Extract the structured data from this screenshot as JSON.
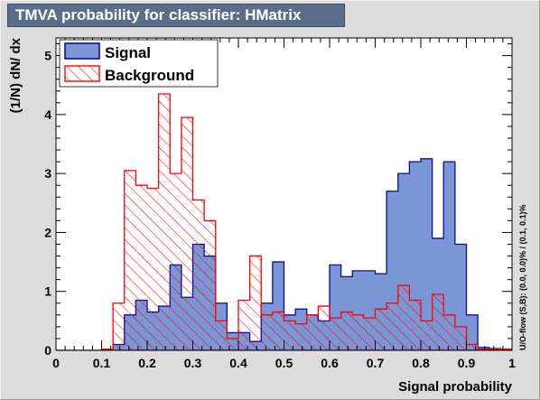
{
  "title": "TMVA probability for classifier: HMatrix",
  "chart_data": {
    "type": "histogram",
    "xlabel": "Signal probability",
    "ylabel": "(1/N) dN/ dx",
    "side_note": "U/O-flow (S,B): (0.0, 0.0)% / (0.1, 0.1)%",
    "xlim": [
      0,
      1
    ],
    "ylim": [
      0,
      5.3
    ],
    "x_ticks": [
      "0",
      "0.1",
      "0.2",
      "0.3",
      "0.4",
      "0.5",
      "0.6",
      "0.7",
      "0.8",
      "0.9",
      "1"
    ],
    "y_ticks": [
      "0",
      "1",
      "2",
      "3",
      "4",
      "5"
    ],
    "bin_width": 0.025,
    "legend_position": "top-left",
    "series": [
      {
        "name": "Signal",
        "fill": "#7b96d4",
        "line": "#0a0aa0",
        "values": [
          0.0,
          0.0,
          0.0,
          0.0,
          0.02,
          0.1,
          0.6,
          0.85,
          0.65,
          0.75,
          1.45,
          0.9,
          1.8,
          1.6,
          0.8,
          0.3,
          0.3,
          0.15,
          0.8,
          1.5,
          0.6,
          0.7,
          0.6,
          0.5,
          1.45,
          1.25,
          1.35,
          1.35,
          1.3,
          2.7,
          3.0,
          3.2,
          3.25,
          1.9,
          3.2,
          1.8,
          0.6,
          0.05,
          0.03,
          0.02
        ]
      },
      {
        "name": "Background",
        "fill": "#ff0000",
        "line": "#ff0000",
        "values": [
          0.0,
          0.0,
          0.0,
          0.0,
          0.02,
          0.8,
          3.05,
          2.8,
          2.75,
          4.35,
          3.0,
          3.95,
          2.55,
          2.2,
          0.5,
          0.2,
          0.85,
          1.6,
          0.6,
          0.65,
          0.5,
          0.45,
          0.6,
          0.75,
          0.55,
          0.65,
          0.6,
          0.55,
          0.7,
          0.8,
          1.1,
          0.85,
          0.5,
          0.95,
          0.6,
          0.4,
          0.1,
          0.02,
          0.02,
          0.02
        ]
      }
    ]
  }
}
